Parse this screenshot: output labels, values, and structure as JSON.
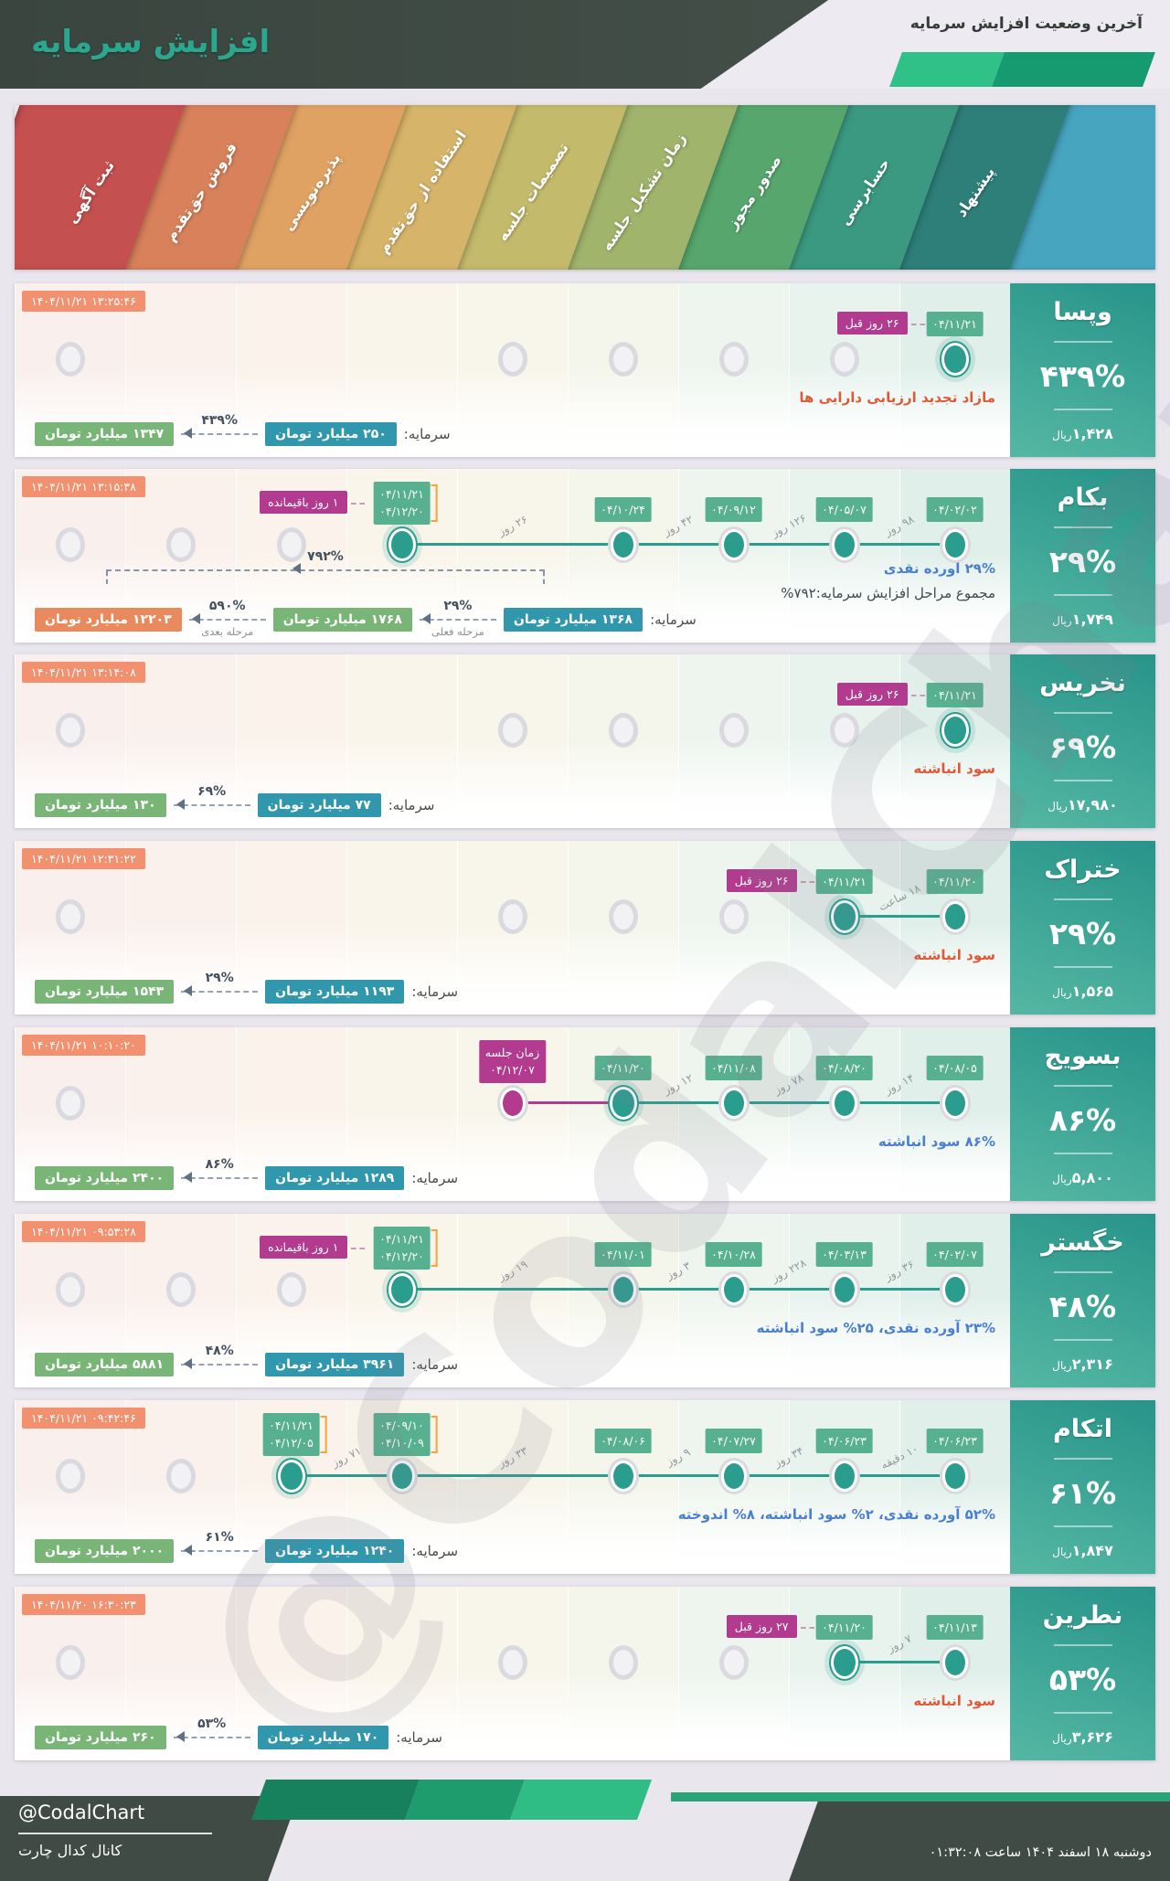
{
  "header": {
    "title": "افزایش سرمایه",
    "subtitle": "آخرین وضعیت افزایش سرمایه"
  },
  "watermark": "@CodalChart",
  "palette": {
    "teal": "#2a9d8f",
    "green": "#57b191",
    "magenta": "#b23b90",
    "salmon": "#f2916f",
    "money-teal": "#3097ad",
    "money-green": "#79b577",
    "money-orange": "#e98a5e",
    "red": "#de5a37",
    "blue": "#4a7fd0"
  },
  "stages": [
    {
      "label": "ثبت آگهی",
      "color": "#c4504f",
      "tint": "#f9efed"
    },
    {
      "label": "فروش حق‌تقدم",
      "color": "#d8815b",
      "tint": "#faf1ec"
    },
    {
      "label": "پذیره‌نویسی",
      "color": "#e0a263",
      "tint": "#fbf3eb"
    },
    {
      "label": "استفاده از حق‌تقدم",
      "color": "#d6b469",
      "tint": "#faf5ea"
    },
    {
      "label": "تصمیمات جلسه",
      "color": "#c3ba6b",
      "tint": "#f8f6ea"
    },
    {
      "label": "زمان تشکیل جلسه",
      "color": "#a0b46c",
      "tint": "#f4f6eb"
    },
    {
      "label": "صدور مجوز",
      "color": "#56a66d",
      "tint": "#eef5ee"
    },
    {
      "label": "حسابرسی",
      "color": "#3a9980",
      "tint": "#e8f3ee"
    },
    {
      "label": "پیشنهاد",
      "color": "#2e7f79",
      "tint": "#e0efe9"
    }
  ],
  "edge_color": "#47a5c0",
  "rows": [
    {
      "name": "وپسا",
      "timestamp": "۱۴۰۴/۱۱/۲۱ ۱۳:۲۵:۴۶",
      "percent": "۴۳۹%",
      "price": "۱,۴۲۸",
      "price_unit": "ریال",
      "desc": [
        {
          "text": "مازاد تجدید ارزیابی دارایی ها",
          "style": "red"
        }
      ],
      "markers": [
        {
          "col": 1,
          "type": "gray"
        },
        {
          "col": 5,
          "type": "gray"
        },
        {
          "col": 6,
          "type": "gray"
        },
        {
          "col": 7,
          "type": "gray"
        },
        {
          "col": 8,
          "type": "gray"
        },
        {
          "col": 9,
          "type": "active",
          "dates": [
            "۰۴/۱۱/۲۱"
          ],
          "rel": "۲۶ روز قبل"
        }
      ],
      "lines": [],
      "gaps": [],
      "chain": {
        "label": "سرمایه:",
        "capital": "۲۵۰ میلیارد تومان",
        "steps": [
          {
            "percent": "۴۳۹%",
            "amount": "۱۳۴۷ میلیارد تومان",
            "style": "green"
          }
        ]
      }
    },
    {
      "name": "بکام",
      "timestamp": "۱۴۰۴/۱۱/۲۱ ۱۳:۱۵:۳۸",
      "percent": "۲۹%",
      "price": "۱,۷۴۹",
      "price_unit": "ریال",
      "desc": [
        {
          "text": "۲۹% آورده نقدی",
          "style": "blue"
        },
        {
          "text": "مجموع مراحل افزایش سرمایه:۷۹۲%",
          "style": "dark"
        }
      ],
      "markers": [
        {
          "col": 1,
          "type": "gray"
        },
        {
          "col": 2,
          "type": "gray"
        },
        {
          "col": 3,
          "type": "gray"
        },
        {
          "col": 4,
          "type": "active",
          "dates": [
            "۰۴/۱۱/۲۱",
            "۰۴/۱۲/۲۰"
          ],
          "bracket": true,
          "rel": "۱ روز باقیمانده"
        },
        {
          "col": 6,
          "type": "plain",
          "dates": [
            "۰۴/۱۰/۲۴"
          ]
        },
        {
          "col": 7,
          "type": "plain",
          "dates": [
            "۰۴/۰۹/۱۲"
          ]
        },
        {
          "col": 8,
          "type": "plain",
          "dates": [
            "۰۴/۰۵/۰۷"
          ]
        },
        {
          "col": 9,
          "type": "plain",
          "dates": [
            "۰۴/۰۲/۰۲"
          ]
        }
      ],
      "lines": [
        {
          "from": 4,
          "to": 9,
          "style": "teal"
        }
      ],
      "gaps": [
        {
          "a": 4,
          "b": 6,
          "text": "۲۶ روز"
        },
        {
          "a": 6,
          "b": 7,
          "text": "۴۲ روز"
        },
        {
          "a": 7,
          "b": 8,
          "text": "۱۲۶ روز"
        },
        {
          "a": 8,
          "b": 9,
          "text": "۹۸ روز"
        }
      ],
      "chain": {
        "label": "سرمایه:",
        "capital": "۱۳۶۸ میلیارد تومان",
        "steps": [
          {
            "percent": "۲۹%",
            "sub": "مرحله فعلی",
            "amount": "۱۷۶۸ میلیارد تومان",
            "style": "green"
          },
          {
            "percent": "۵۹۰%",
            "sub": "مرحله بعدی",
            "amount": "۱۲۲۰۳ میلیارد تومان",
            "style": "orange"
          }
        ],
        "total": "۷۹۲%"
      }
    },
    {
      "name": "نخریس",
      "timestamp": "۱۴۰۴/۱۱/۲۱ ۱۳:۱۴:۰۸",
      "percent": "۶۹%",
      "price": "۱۷,۹۸۰",
      "price_unit": "ریال",
      "desc": [
        {
          "text": "سود انباشته",
          "style": "red"
        }
      ],
      "markers": [
        {
          "col": 1,
          "type": "gray"
        },
        {
          "col": 5,
          "type": "gray"
        },
        {
          "col": 6,
          "type": "gray"
        },
        {
          "col": 7,
          "type": "gray"
        },
        {
          "col": 8,
          "type": "gray"
        },
        {
          "col": 9,
          "type": "active",
          "dates": [
            "۰۴/۱۱/۲۱"
          ],
          "rel": "۲۶ روز قبل"
        }
      ],
      "lines": [],
      "gaps": [],
      "chain": {
        "label": "سرمایه:",
        "capital": "۷۷ میلیارد تومان",
        "steps": [
          {
            "percent": "۶۹%",
            "amount": "۱۳۰ میلیارد تومان",
            "style": "green"
          }
        ]
      }
    },
    {
      "name": "ختراک",
      "timestamp": "۱۴۰۴/۱۱/۲۱ ۱۲:۳۱:۲۲",
      "percent": "۲۹%",
      "price": "۱,۵۶۵",
      "price_unit": "ریال",
      "desc": [
        {
          "text": "سود انباشته",
          "style": "red"
        }
      ],
      "markers": [
        {
          "col": 1,
          "type": "gray"
        },
        {
          "col": 5,
          "type": "gray"
        },
        {
          "col": 6,
          "type": "gray"
        },
        {
          "col": 7,
          "type": "gray"
        },
        {
          "col": 8,
          "type": "active",
          "dates": [
            "۰۴/۱۱/۲۱"
          ],
          "rel": "۲۶ روز قبل"
        },
        {
          "col": 9,
          "type": "plain",
          "dates": [
            "۰۴/۱۱/۲۰"
          ]
        }
      ],
      "lines": [
        {
          "from": 8,
          "to": 9,
          "style": "teal"
        }
      ],
      "gaps": [
        {
          "a": 8,
          "b": 9,
          "text": "۱۸ ساعت"
        }
      ],
      "chain": {
        "label": "سرمایه:",
        "capital": "۱۱۹۳ میلیارد تومان",
        "steps": [
          {
            "percent": "۲۹%",
            "amount": "۱۵۴۳ میلیارد تومان",
            "style": "green"
          }
        ]
      }
    },
    {
      "name": "بسویج",
      "timestamp": "۱۴۰۴/۱۱/۲۱ ۱۰:۱۰:۲۰",
      "percent": "۸۶%",
      "price": "۵,۸۰۰",
      "price_unit": "ریال",
      "desc": [
        {
          "text": "۸۶% سود انباشته",
          "style": "blue"
        }
      ],
      "markers": [
        {
          "col": 1,
          "type": "gray"
        },
        {
          "col": 5,
          "type": "magenta",
          "badge_magenta": [
            "زمان جلسه",
            "۰۴/۱۲/۰۷"
          ]
        },
        {
          "col": 6,
          "type": "active",
          "dates": [
            "۰۴/۱۱/۲۰"
          ]
        },
        {
          "col": 7,
          "type": "plain",
          "dates": [
            "۰۴/۱۱/۰۸"
          ]
        },
        {
          "col": 8,
          "type": "plain",
          "dates": [
            "۰۴/۰۸/۲۰"
          ]
        },
        {
          "col": 9,
          "type": "plain",
          "dates": [
            "۰۴/۰۸/۰۵"
          ]
        }
      ],
      "lines": [
        {
          "from": 5,
          "to": 6,
          "style": "magenta"
        },
        {
          "from": 6,
          "to": 9,
          "style": "teal"
        }
      ],
      "gaps": [
        {
          "a": 6,
          "b": 7,
          "text": "۱۲ روز"
        },
        {
          "a": 7,
          "b": 8,
          "text": "۷۸ روز"
        },
        {
          "a": 8,
          "b": 9,
          "text": "۱۴ روز"
        }
      ],
      "chain": {
        "label": "سرمایه:",
        "capital": "۱۲۸۹ میلیارد تومان",
        "steps": [
          {
            "percent": "۸۶%",
            "amount": "۲۴۰۰ میلیارد تومان",
            "style": "green"
          }
        ]
      }
    },
    {
      "name": "خگستر",
      "timestamp": "۱۴۰۴/۱۱/۲۱ ۰۹:۵۳:۲۸",
      "percent": "۴۸%",
      "price": "۲,۳۱۶",
      "price_unit": "ریال",
      "desc": [
        {
          "text": "۲۳% آورده نقدی، ۲۵% سود انباشته",
          "style": "blue"
        }
      ],
      "markers": [
        {
          "col": 1,
          "type": "gray"
        },
        {
          "col": 2,
          "type": "gray"
        },
        {
          "col": 3,
          "type": "gray"
        },
        {
          "col": 4,
          "type": "active",
          "dates": [
            "۰۴/۱۱/۲۱",
            "۰۴/۱۲/۲۰"
          ],
          "bracket": true,
          "rel": "۱ روز باقیمانده"
        },
        {
          "col": 6,
          "type": "plain",
          "dates": [
            "۰۴/۱۱/۰۱"
          ]
        },
        {
          "col": 7,
          "type": "plain",
          "dates": [
            "۰۴/۱۰/۲۸"
          ]
        },
        {
          "col": 8,
          "type": "plain",
          "dates": [
            "۰۴/۰۳/۱۳"
          ]
        },
        {
          "col": 9,
          "type": "plain",
          "dates": [
            "۰۴/۰۲/۰۷"
          ]
        }
      ],
      "lines": [
        {
          "from": 4,
          "to": 9,
          "style": "teal"
        }
      ],
      "gaps": [
        {
          "a": 4,
          "b": 6,
          "text": "۱۹ روز"
        },
        {
          "a": 6,
          "b": 7,
          "text": "۳ روز"
        },
        {
          "a": 7,
          "b": 8,
          "text": "۲۲۸ روز"
        },
        {
          "a": 8,
          "b": 9,
          "text": "۳۶ روز"
        }
      ],
      "chain": {
        "label": "سرمایه:",
        "capital": "۳۹۶۱ میلیارد تومان",
        "steps": [
          {
            "percent": "۴۸%",
            "amount": "۵۸۸۱ میلیارد تومان",
            "style": "green"
          }
        ]
      }
    },
    {
      "name": "اتکام",
      "timestamp": "۱۴۰۴/۱۱/۲۱ ۰۹:۴۲:۴۶",
      "percent": "۶۱%",
      "price": "۱,۸۴۷",
      "price_unit": "ریال",
      "desc": [
        {
          "text": "۵۲% آورده نقدی، ۲% سود انباشته، ۸% اندوخته",
          "style": "blue"
        }
      ],
      "markers": [
        {
          "col": 1,
          "type": "gray"
        },
        {
          "col": 2,
          "type": "gray"
        },
        {
          "col": 3,
          "type": "active",
          "dates": [
            "۰۴/۱۱/۲۱",
            "۰۴/۱۲/۰۵"
          ],
          "bracket": true
        },
        {
          "col": 4,
          "type": "plain",
          "dates": [
            "۰۴/۰۹/۱۰",
            "۰۴/۱۰/۰۹"
          ],
          "bracket": true
        },
        {
          "col": 6,
          "type": "plain",
          "dates": [
            "۰۴/۰۸/۰۶"
          ]
        },
        {
          "col": 7,
          "type": "plain",
          "dates": [
            "۰۴/۰۷/۲۷"
          ]
        },
        {
          "col": 8,
          "type": "plain",
          "dates": [
            "۰۴/۰۶/۲۳"
          ]
        },
        {
          "col": 9,
          "type": "plain",
          "dates": [
            "۰۴/۰۶/۲۳"
          ]
        }
      ],
      "lines": [
        {
          "from": 3,
          "to": 9,
          "style": "teal"
        }
      ],
      "gaps": [
        {
          "a": 3,
          "b": 4,
          "text": "۷۱ روز"
        },
        {
          "a": 4,
          "b": 6,
          "text": "۳۳ روز"
        },
        {
          "a": 6,
          "b": 7,
          "text": "۹ روز"
        },
        {
          "a": 7,
          "b": 8,
          "text": "۳۴ روز"
        },
        {
          "a": 8,
          "b": 9,
          "text": "۱۰ دقیقه"
        }
      ],
      "chain": {
        "label": "سرمایه:",
        "capital": "۱۲۴۰ میلیارد تومان",
        "steps": [
          {
            "percent": "۶۱%",
            "amount": "۲۰۰۰ میلیارد تومان",
            "style": "green"
          }
        ]
      }
    },
    {
      "name": "نطرین",
      "timestamp": "۱۴۰۴/۱۱/۲۰ ۱۶:۳۰:۲۳",
      "percent": "۵۳%",
      "price": "۳,۶۲۶",
      "price_unit": "ریال",
      "desc": [
        {
          "text": "سود انباشته",
          "style": "red"
        }
      ],
      "markers": [
        {
          "col": 1,
          "type": "gray"
        },
        {
          "col": 5,
          "type": "gray"
        },
        {
          "col": 6,
          "type": "gray"
        },
        {
          "col": 7,
          "type": "gray"
        },
        {
          "col": 8,
          "type": "active",
          "dates": [
            "۰۴/۱۱/۲۰"
          ],
          "rel": "۲۷ روز قبل"
        },
        {
          "col": 9,
          "type": "plain",
          "dates": [
            "۰۴/۱۱/۱۳"
          ]
        }
      ],
      "lines": [
        {
          "from": 8,
          "to": 9,
          "style": "teal"
        }
      ],
      "gaps": [
        {
          "a": 8,
          "b": 9,
          "text": "۷ روز"
        }
      ],
      "chain": {
        "label": "سرمایه:",
        "capital": "۱۷۰ میلیارد تومان",
        "steps": [
          {
            "percent": "۵۳%",
            "amount": "۲۶۰ میلیارد تومان",
            "style": "green"
          }
        ]
      }
    }
  ],
  "footer": {
    "handle": "@CodalChart",
    "channel": "کانال کدال چارت",
    "datetime": "دوشنبه ۱۸ اسفند ۱۴۰۴ ساعت ۰۱:۳۲:۰۸"
  }
}
